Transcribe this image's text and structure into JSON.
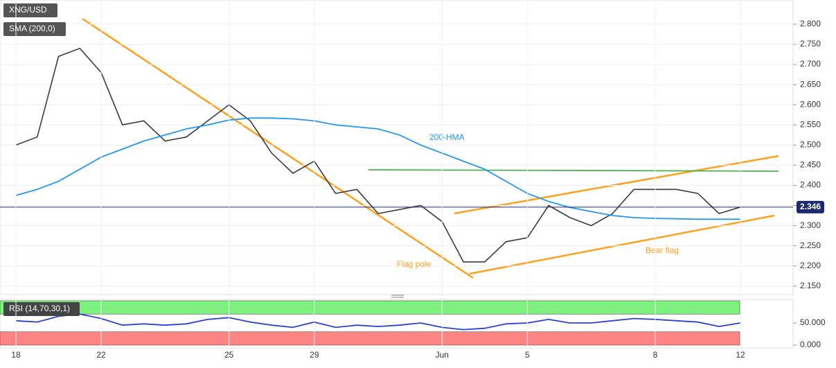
{
  "chart_data": [
    {
      "type": "line",
      "categories": [
        "18",
        null,
        null,
        null,
        "22",
        null,
        null,
        null,
        null,
        null,
        "25",
        null,
        null,
        null,
        "29",
        null,
        null,
        null,
        null,
        null,
        "Jun",
        null,
        null,
        null,
        "5",
        null,
        null,
        null,
        null,
        null,
        "8",
        null,
        null,
        null,
        "12"
      ],
      "series": [
        {
          "name": "XNG/USD",
          "color": "#3a3a3a",
          "values": [
            2.5,
            2.52,
            2.72,
            2.74,
            2.68,
            2.55,
            2.56,
            2.51,
            2.52,
            2.56,
            2.6,
            2.56,
            2.48,
            2.43,
            2.46,
            2.38,
            2.39,
            2.33,
            2.34,
            2.35,
            2.31,
            2.21,
            2.21,
            2.26,
            2.27,
            2.35,
            2.32,
            2.3,
            2.33,
            2.39,
            2.39,
            2.39,
            2.38,
            2.33,
            2.346
          ]
        },
        {
          "name": "SMA (200,0)",
          "color": "#2196f3",
          "values": [
            2.375,
            2.39,
            2.41,
            2.44,
            2.47,
            2.49,
            2.51,
            2.525,
            2.54,
            2.55,
            2.562,
            2.567,
            2.567,
            2.565,
            2.56,
            2.55,
            2.545,
            2.54,
            2.525,
            2.5,
            2.48,
            2.46,
            2.44,
            2.41,
            2.38,
            2.36,
            2.345,
            2.335,
            2.325,
            2.32,
            2.318,
            2.317,
            2.316,
            2.316,
            2.316
          ]
        }
      ],
      "current_price": 2.346,
      "annotations": [
        "200-HMA",
        "Flag pole",
        "Bear flag"
      ],
      "ylim": [
        2.129,
        2.86
      ],
      "yticks": [
        {
          "value": 2.15,
          "label": "2.150"
        },
        {
          "value": 2.2,
          "label": "2.200"
        },
        {
          "value": 2.25,
          "label": "2.250"
        },
        {
          "value": 2.3,
          "label": "2.300"
        },
        {
          "value": 2.35,
          "label": "2.350"
        },
        {
          "value": 2.4,
          "label": "2.400"
        },
        {
          "value": 2.45,
          "label": "2.450"
        },
        {
          "value": 2.5,
          "label": "2.500"
        },
        {
          "value": 2.55,
          "label": "2.550"
        },
        {
          "value": 2.6,
          "label": "2.600"
        },
        {
          "value": 2.65,
          "label": "2.650"
        },
        {
          "value": 2.7,
          "label": "2.700"
        },
        {
          "value": 2.75,
          "label": "2.750"
        },
        {
          "value": 2.8,
          "label": "2.800"
        }
      ],
      "grid": true
    },
    {
      "type": "line",
      "series": [
        {
          "name": "RSI (14,70,30,1)",
          "color": "#2b3fd6",
          "values": [
            55,
            52,
            65,
            70,
            60,
            45,
            48,
            45,
            48,
            58,
            62,
            52,
            45,
            40,
            52,
            40,
            45,
            42,
            45,
            50,
            40,
            35,
            38,
            48,
            50,
            58,
            50,
            50,
            55,
            60,
            58,
            55,
            52,
            42,
            50
          ]
        }
      ],
      "bands": [
        {
          "from": 70,
          "to": 100,
          "color": "#7ef07e"
        },
        {
          "from": 0,
          "to": 30,
          "color": "#ff8585"
        }
      ],
      "ylim": [
        0,
        100
      ],
      "yticks": [
        {
          "value": 50,
          "label": "50.000"
        },
        {
          "value": 0,
          "label": "0.000"
        }
      ]
    }
  ]
}
